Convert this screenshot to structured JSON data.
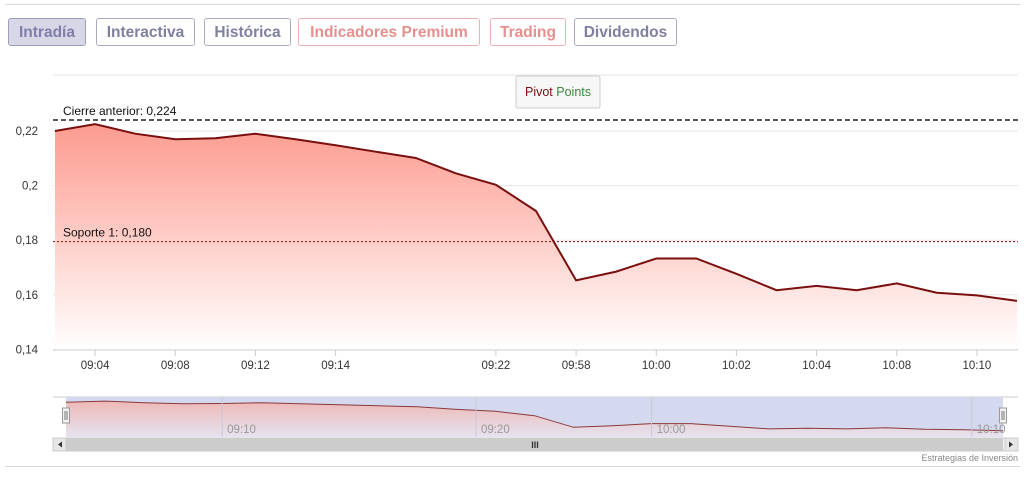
{
  "tabs": [
    {
      "label": "Intradía",
      "style": "active"
    },
    {
      "label": "Interactiva",
      "style": "normal"
    },
    {
      "label": "Histórica",
      "style": "normal"
    },
    {
      "label": "Indicadores Premium",
      "style": "premium"
    },
    {
      "label": "Trading",
      "style": "premium"
    },
    {
      "label": "Dividendos",
      "style": "normal"
    }
  ],
  "pivot_button": {
    "word1": "Pivot",
    "word2": "Points"
  },
  "credit": "Estrategias de Inversión",
  "colors": {
    "line": "#7a0f0f",
    "area_top": "#fd9b8f",
    "area_bottom": "#ffffff",
    "navigator_mask": "#d5d9ef",
    "pivot_green": "#3a8a3a"
  },
  "chart_data": {
    "type": "area",
    "title": "",
    "xlabel": "",
    "ylabel": "",
    "ylim": [
      0.14,
      0.225
    ],
    "yticks": [
      "0,14",
      "0,16",
      "0,18",
      "0,2",
      "0,22"
    ],
    "ytick_values": [
      0.14,
      0.16,
      0.18,
      0.2,
      0.22
    ],
    "grid": true,
    "x_labels": [
      "09:04",
      "09:08",
      "09:12",
      "09:14",
      "09:22",
      "09:58",
      "10:00",
      "10:02",
      "10:04",
      "10:08",
      "10:10"
    ],
    "x_label_index": [
      1,
      3,
      5,
      7,
      11,
      13,
      15,
      17,
      19,
      21,
      23
    ],
    "series": [
      {
        "values": [
          0.22,
          0.2225,
          0.219,
          0.217,
          0.2173,
          0.219,
          0.217,
          0.2148,
          0.2124,
          0.2101,
          0.2045,
          0.2003,
          0.1907,
          0.1653,
          0.1685,
          0.1733,
          0.1733,
          0.1677,
          0.1617,
          0.1633,
          0.1617,
          0.1642,
          0.1608,
          0.1598,
          0.1578
        ]
      }
    ],
    "reference_lines": [
      {
        "label": "Cierre anterior: 0,224",
        "value": 0.224,
        "style": "dashed"
      },
      {
        "label": "Soporte 1: 0,180",
        "value": 0.1795,
        "style": "dotted"
      }
    ],
    "navigator_labels": [
      "09:10",
      "09:20",
      "10:00",
      "10:10"
    ],
    "navigator_label_index": [
      4,
      10.5,
      15,
      23.2
    ],
    "scrollbar_grip": "III"
  }
}
